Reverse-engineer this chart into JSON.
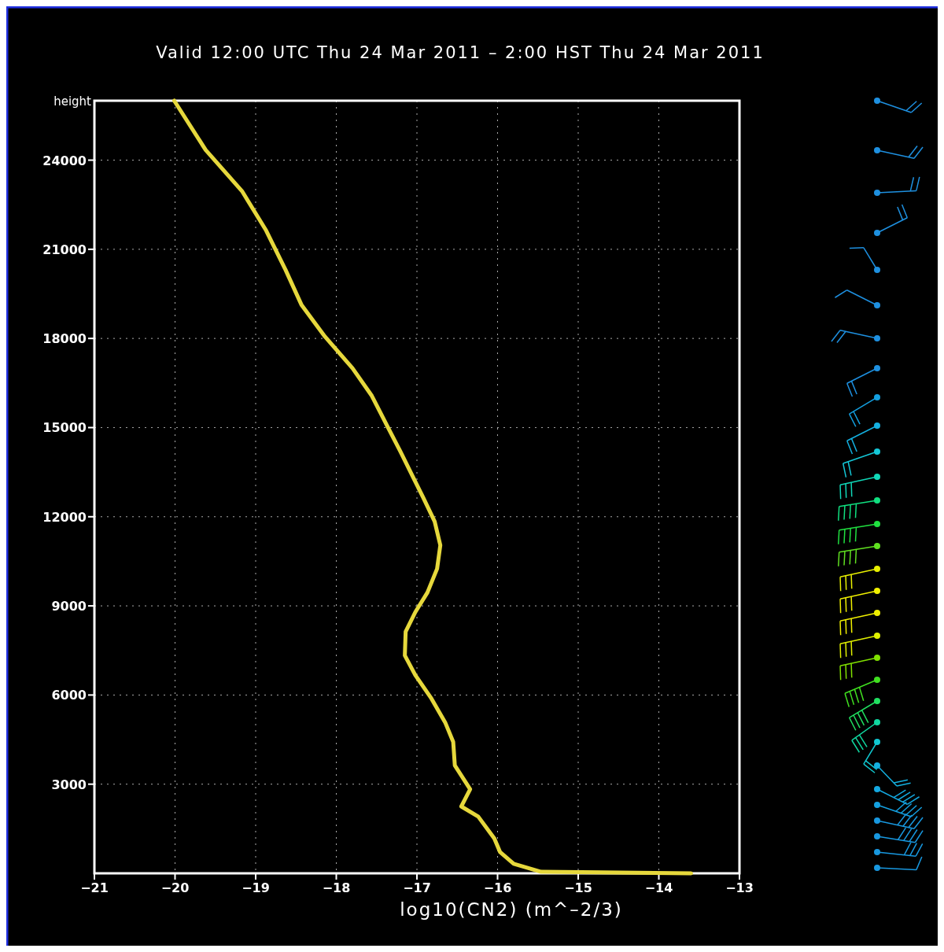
{
  "chart_data": {
    "type": "line",
    "title": "Valid 12:00 UTC Thu 24 Mar 2011 – 2:00 HST Thu 24 Mar 2011",
    "xlabel": "log10(CN2) (m^–2/3)",
    "ylabel": "height",
    "xlim": [
      -21,
      -13
    ],
    "xticks": [
      -21,
      -20,
      -19,
      -18,
      -17,
      -16,
      -15,
      -14,
      -13
    ],
    "ylim": [
      0,
      26000
    ],
    "yticks": [
      3000,
      6000,
      9000,
      12000,
      15000,
      18000,
      21000,
      24000
    ],
    "grid": true,
    "line_style": "solid",
    "series": [
      {
        "color": "#e6d83c",
        "x": [
          -20.01,
          -19.62,
          -19.17,
          -18.87,
          -18.63,
          -18.43,
          -18.14,
          -17.8,
          -17.56,
          -17.36,
          -17.21,
          -17.04,
          -16.92,
          -16.78,
          -16.71,
          -16.75,
          -16.87,
          -17.02,
          -17.14,
          -17.15,
          -17.02,
          -16.82,
          -16.65,
          -16.55,
          -16.53,
          -16.34,
          -16.45,
          -16.24,
          -16.04,
          -15.97,
          -15.8,
          -15.46,
          -13.6
        ],
        "values": [
          26000,
          24340,
          22960,
          21630,
          20310,
          19120,
          18060,
          17000,
          16070,
          15010,
          14220,
          13290,
          12630,
          11840,
          11040,
          10250,
          9450,
          8790,
          8130,
          7330,
          6670,
          5880,
          5080,
          4420,
          3630,
          2830,
          2250,
          1910,
          1170,
          720,
          320,
          50,
          0
        ]
      }
    ]
  }
}
